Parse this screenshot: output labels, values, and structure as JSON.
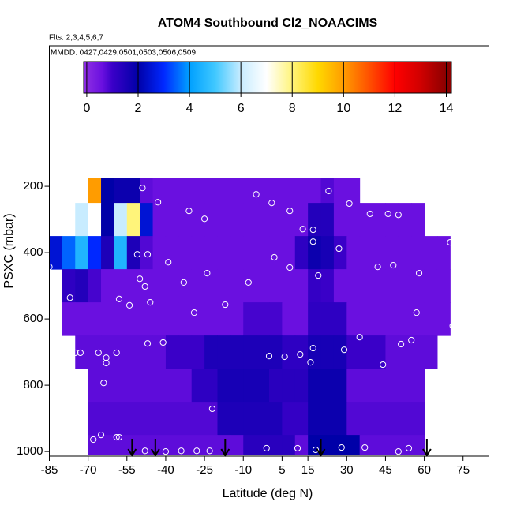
{
  "chart_data": {
    "type": "curtain",
    "title": "ATOM4 Southbound Cl2_NOAACIMS",
    "subtitle": "Flts: 2,3,4,5,6,7",
    "annotation": "MMDD: 0427,0429,0501,0503,0506,0509",
    "x_label": "Latitude (deg N)",
    "y_label": "PSXC (mbar)",
    "xlim": [
      -85,
      85
    ],
    "xticks": [
      -85,
      -70,
      -55,
      -40,
      -25,
      -10,
      5,
      15,
      30,
      45,
      60,
      75
    ],
    "ylim": [
      1014,
      -224
    ],
    "yticks": [
      200,
      400,
      600,
      800,
      1000
    ],
    "clim": [
      -0.12,
      14.2
    ],
    "cticks": [
      0,
      2,
      4,
      6,
      8,
      10,
      12,
      14
    ],
    "colorscale": [
      [
        0,
        "#8a2be2"
      ],
      [
        0.6,
        "#6a10e0"
      ],
      [
        1,
        "#3a00c8"
      ],
      [
        2,
        "#0000a8"
      ],
      [
        3,
        "#0028ff"
      ],
      [
        4,
        "#00a0ff"
      ],
      [
        5,
        "#40c8ff"
      ],
      [
        6,
        "#c8ecff"
      ],
      [
        7,
        "#ffffff"
      ],
      [
        8,
        "#fff47a"
      ],
      [
        9,
        "#ffd800"
      ],
      [
        10,
        "#ff9c00"
      ],
      [
        11,
        "#ff5000"
      ],
      [
        12,
        "#ff0000"
      ],
      [
        13,
        "#d00000"
      ],
      [
        14,
        "#8a0000"
      ]
    ],
    "lat_edges": [
      -85,
      -80,
      -75,
      -70,
      -65,
      -60,
      -55,
      -50,
      -45,
      -40,
      -35,
      -30,
      -25,
      -20,
      -15,
      -10,
      -5,
      0,
      5,
      10,
      15,
      20,
      25,
      30,
      35,
      40,
      45,
      50,
      55,
      60,
      65,
      70
    ],
    "p_edges": [
      175,
      250,
      350,
      450,
      550,
      650,
      750,
      850,
      950,
      1010
    ],
    "z": [
      [
        null,
        null,
        null,
        10,
        2,
        1.8,
        1.8,
        0.7,
        0.6,
        0.6,
        0.6,
        0.6,
        0.6,
        0.6,
        0.6,
        0.6,
        0.6,
        0.6,
        0.6,
        0.6,
        0.6,
        0.8,
        0.6,
        0.6,
        null,
        null,
        null,
        null,
        null,
        null,
        null
      ],
      [
        null,
        null,
        6,
        7,
        2,
        6,
        8,
        2.5,
        0.6,
        0.6,
        0.6,
        0.6,
        0.6,
        0.6,
        0.6,
        0.6,
        0.6,
        0.6,
        0.6,
        0.6,
        1.4,
        1.4,
        0.6,
        0.6,
        0.6,
        0.6,
        0.6,
        0.6,
        0.6,
        null,
        null
      ],
      [
        2.5,
        3.5,
        4.5,
        3,
        1.5,
        4.5,
        1.5,
        0.8,
        0.6,
        0.6,
        0.6,
        0.6,
        0.6,
        0.6,
        0.6,
        0.6,
        0.6,
        0.6,
        0.6,
        1.2,
        1.8,
        1.6,
        1,
        0.6,
        0.6,
        0.6,
        0.6,
        0.6,
        0.6,
        0.6,
        0.6
      ],
      [
        null,
        1.2,
        1.4,
        0.9,
        0.6,
        0.6,
        0.6,
        0.6,
        0.6,
        0.6,
        0.6,
        0.6,
        0.6,
        0.6,
        0.6,
        0.6,
        0.6,
        0.6,
        0.6,
        0.6,
        1.1,
        1,
        0.6,
        0.6,
        0.6,
        0.6,
        0.6,
        0.6,
        0.6,
        0.6,
        0.6
      ],
      [
        null,
        0.6,
        0.6,
        0.6,
        0.6,
        0.6,
        0.6,
        0.6,
        0.6,
        0.6,
        0.6,
        0.6,
        0.6,
        0.6,
        0.6,
        0.9,
        0.9,
        0.9,
        0.6,
        0.6,
        1.2,
        1.2,
        1.2,
        0.6,
        0.6,
        0.6,
        0.6,
        0.6,
        0.6,
        0.6,
        0.6
      ],
      [
        null,
        null,
        0.7,
        0.7,
        0.7,
        0.7,
        0.7,
        0.7,
        0.7,
        1,
        1,
        1,
        1.5,
        1.5,
        1.5,
        1.5,
        1.5,
        1.5,
        1.2,
        1.2,
        1.6,
        1.6,
        1.6,
        1,
        1,
        1,
        0.7,
        0.7,
        0.7,
        0.7,
        null
      ],
      [
        null,
        null,
        null,
        0.7,
        0.7,
        0.7,
        0.7,
        0.7,
        0.7,
        0.7,
        0.7,
        1.2,
        1.2,
        1.6,
        1.6,
        1.6,
        1.6,
        1.3,
        1.3,
        1.3,
        1.8,
        1.8,
        1.8,
        0.7,
        0.7,
        0.7,
        0.7,
        0.7,
        0.7,
        null,
        null
      ],
      [
        null,
        null,
        null,
        0.8,
        0.8,
        0.8,
        0.8,
        0.8,
        0.8,
        0.8,
        0.8,
        0.8,
        0.8,
        1.5,
        1.5,
        1.5,
        1.5,
        1.5,
        1.1,
        1.1,
        1.8,
        1.8,
        1.8,
        0.8,
        0.8,
        0.8,
        0.8,
        0.8,
        0.8,
        null,
        null
      ],
      [
        null,
        null,
        null,
        0.7,
        0.7,
        0.7,
        0.7,
        0.7,
        0.7,
        0.7,
        0.7,
        0.7,
        0.7,
        0.7,
        0.7,
        1.3,
        1.3,
        1.3,
        1.3,
        0.7,
        2,
        2,
        2,
        2,
        0.7,
        0.7,
        0.7,
        0.7,
        0.7,
        null,
        null
      ]
    ],
    "points": {
      "lat": [
        -49,
        -43,
        -31,
        -25,
        -5,
        1,
        8,
        23,
        31,
        39,
        46,
        50,
        13,
        17,
        17,
        27,
        2,
        8,
        19,
        42,
        48,
        58,
        70,
        -85,
        -77,
        -58,
        -54,
        -50,
        -48,
        -51,
        -47,
        -39,
        -33,
        -24,
        -8,
        -46,
        -17,
        -29,
        57,
        71,
        35,
        -41,
        -47,
        -75,
        -73,
        -66,
        -59,
        -63,
        -63,
        -64,
        0,
        6,
        12,
        17,
        16,
        29,
        44,
        51,
        55,
        -22,
        -65,
        -68,
        -59,
        -58,
        -48,
        -40,
        -34,
        -28,
        -23,
        -1,
        11,
        18,
        28,
        37,
        50,
        54
      ],
      "p": [
        205,
        248,
        274,
        298,
        224,
        250,
        274,
        214,
        252,
        283,
        283,
        286,
        329,
        331,
        367,
        388,
        414,
        445,
        469,
        443,
        438,
        462,
        369,
        443,
        536,
        540,
        559,
        479,
        502,
        405,
        405,
        429,
        490,
        462,
        490,
        550,
        557,
        581,
        581,
        621,
        655,
        671,
        674,
        702,
        702,
        702,
        702,
        717,
        733,
        793,
        712,
        714,
        707,
        688,
        731,
        693,
        738,
        676,
        664,
        871,
        950,
        964,
        957,
        957,
        998,
        1000,
        998,
        998,
        998,
        990,
        990,
        995,
        988,
        988,
        1000,
        990
      ]
    },
    "arrows_lat": [
      -53,
      -44,
      -17,
      20,
      61
    ]
  }
}
